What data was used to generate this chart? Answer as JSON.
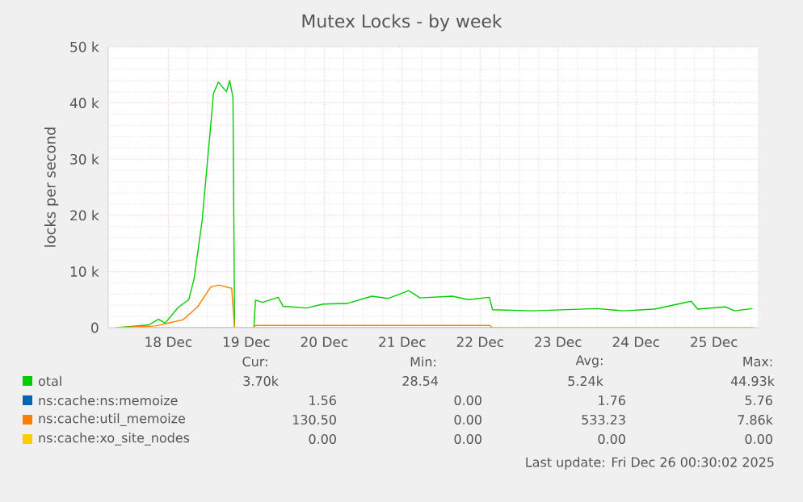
{
  "chart_data": {
    "type": "line",
    "title": "Mutex Locks - by week",
    "ylabel": "locks per second",
    "xlim": [
      "2025-12-17T05:30",
      "2025-12-25T13:30"
    ],
    "xticks": [
      {
        "value": "2025-12-18T00:00",
        "label": "18 Dec"
      },
      {
        "value": "2025-12-19T00:00",
        "label": "19 Dec"
      },
      {
        "value": "2025-12-20T00:00",
        "label": "20 Dec"
      },
      {
        "value": "2025-12-21T00:00",
        "label": "21 Dec"
      },
      {
        "value": "2025-12-22T00:00",
        "label": "22 Dec"
      },
      {
        "value": "2025-12-23T00:00",
        "label": "23 Dec"
      },
      {
        "value": "2025-12-24T00:00",
        "label": "24 Dec"
      },
      {
        "value": "2025-12-25T00:00",
        "label": "25 Dec"
      }
    ],
    "ylim": [
      0,
      50000
    ],
    "yticks": [
      0,
      {
        "value": 10000,
        "label": "10 k"
      },
      {
        "value": 20000,
        "label": "20 k"
      },
      {
        "value": 30000,
        "label": "30 k"
      },
      {
        "value": 40000,
        "label": "40 k"
      },
      {
        "value": 50000,
        "label": "50 k"
      }
    ],
    "grid": true,
    "legend": "bottom",
    "series": [
      {
        "name": "otal",
        "color": "#00cc00",
        "x": [
          "2025-12-17T08:00",
          "2025-12-17T12:00",
          "2025-12-17T18:00",
          "2025-12-17T21:00",
          "2025-12-17T23:00",
          "2025-12-18T03:00",
          "2025-12-18T06:18",
          "2025-12-18T07:54",
          "2025-12-18T10:24",
          "2025-12-18T11:54",
          "2025-12-18T12:54",
          "2025-12-18T13:54",
          "2025-12-18T15:24",
          "2025-12-18T17:54",
          "2025-12-18T18:54",
          "2025-12-18T19:54",
          "2025-12-18T20:24",
          "2025-12-18T23:00",
          "2025-12-19T02:20",
          "2025-12-19T02:50",
          "2025-12-19T05:00",
          "2025-12-19T09:50",
          "2025-12-19T11:20",
          "2025-12-19T18:40",
          "2025-12-19T23:40",
          "2025-12-20T07:00",
          "2025-12-20T14:40",
          "2025-12-20T19:40",
          "2025-12-21T02:00",
          "2025-12-21T05:30",
          "2025-12-21T15:30",
          "2025-12-21T20:20",
          "2025-12-22T02:50",
          "2025-12-22T03:50",
          "2025-12-22T16:00",
          "2025-12-23T12:00",
          "2025-12-23T20:00",
          "2025-12-24T05:40",
          "2025-12-24T17:00",
          "2025-12-24T19:00",
          "2025-12-25T03:30",
          "2025-12-25T06:20",
          "2025-12-25T11:50"
        ],
        "values": [
          0,
          200,
          500,
          1500,
          800,
          3600,
          5000,
          8600,
          19000,
          28700,
          35000,
          41700,
          43700,
          42000,
          44000,
          41000,
          0,
          null,
          0,
          4900,
          4500,
          5400,
          3800,
          3500,
          4200,
          4300,
          5600,
          5200,
          6600,
          5300,
          5600,
          5000,
          5400,
          3200,
          3000,
          3400,
          3000,
          3300,
          4700,
          3300,
          3700,
          3000,
          3400
        ]
      },
      {
        "name": "ns:cache:ns:memoize",
        "color": "#0066b3"
      },
      {
        "name": "ns:cache:util_memoize",
        "color": "#ff8000",
        "x": [
          "2025-12-17T08:00",
          "2025-12-17T20:00",
          "2025-12-18T04:30",
          "2025-12-18T09:00",
          "2025-12-18T13:00",
          "2025-12-18T15:30",
          "2025-12-18T19:30",
          "2025-12-18T20:24",
          "2025-12-18T23:00",
          "2025-12-19T02:20",
          "2025-12-19T02:50",
          "2025-12-22T03:00",
          "2025-12-22T03:50",
          "2025-12-25T11:50"
        ],
        "values": [
          0,
          300,
          1400,
          3700,
          7200,
          7600,
          7000,
          0,
          null,
          0,
          400,
          400,
          0,
          0
        ]
      },
      {
        "name": "ns:cache:xo_site_nodes",
        "color": "#ffcc00",
        "x": [
          "2025-12-17T08:00",
          "2025-12-25T11:50"
        ],
        "values": [
          0,
          0
        ]
      }
    ],
    "annotations": [
      "Cur:",
      "Min:",
      "Avg:",
      "Max:",
      "3.70k",
      "28.54",
      "5.24k",
      "44.93k",
      "1.56",
      "0.00",
      "1.76",
      "5.76",
      "130.50",
      "0.00",
      "533.23",
      "7.86k",
      "0.00",
      "0.00",
      "0.00",
      "0.00",
      "Last update: Fri Dec 26 00:30:02 2025"
    ]
  }
}
